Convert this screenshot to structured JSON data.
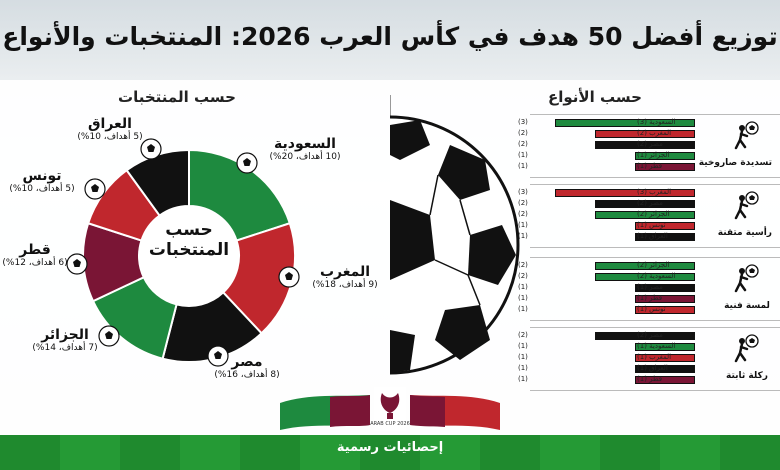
{
  "title": "توزيع أفضل 50 هدف في كأس العرب 2026: المنتخبات والأنواع",
  "footer_label": "إحصائيات رسمية",
  "logo_text": "ARAB CUP 2026",
  "colors": {
    "green": "#1e8a3f",
    "red": "#c0272d",
    "maroon": "#7a1535",
    "black": "#111111"
  },
  "chart_data": [
    {
      "type": "pie",
      "title": "حسب المنتخبات",
      "center_label_line1": "حسب",
      "center_label_line2": "المنتخبات",
      "slices": [
        {
          "name": "السعودية",
          "goals": 10,
          "percent": 20,
          "sub": "(10 أهداف، 20%)",
          "color": "#1e8a3f"
        },
        {
          "name": "المغرب",
          "goals": 9,
          "percent": 18,
          "sub": "(9 أهداف، 18%)",
          "color": "#c0272d"
        },
        {
          "name": "مصر",
          "goals": 8,
          "percent": 16,
          "sub": "(8 أهداف، 16%)",
          "color": "#111111"
        },
        {
          "name": "الجزائر",
          "goals": 7,
          "percent": 14,
          "sub": "(7 أهداف، 14%)",
          "color": "#1e8a3f"
        },
        {
          "name": "قطر",
          "goals": 6,
          "percent": 12,
          "sub": "(6 أهداف، 12%)",
          "color": "#7a1535"
        },
        {
          "name": "تونس",
          "goals": 5,
          "percent": 10,
          "sub": "(5 أهداف، 10%)",
          "color": "#c0272d"
        },
        {
          "name": "العراق",
          "goals": 5,
          "percent": 10,
          "sub": "(5 أهداف، 10%)",
          "color": "#111111"
        }
      ]
    },
    {
      "type": "bar",
      "title": "حسب الأنواع",
      "groups": [
        {
          "name": "تسديدة صاروخية",
          "icon": "shoe-kick-icon",
          "bars": [
            {
              "team": "السعودية",
              "value": 3,
              "label": "السعودية (3)",
              "count": "(3)",
              "color": "#1e8a3f"
            },
            {
              "team": "المغرب",
              "value": 2,
              "label": "المغرب (2)",
              "count": "(2)",
              "color": "#c0272d"
            },
            {
              "team": "مصر",
              "value": 2,
              "label": "مصر (2)",
              "count": "(2)",
              "color": "#111111"
            },
            {
              "team": "الجزائر",
              "value": 1,
              "label": "الجزائر (1)",
              "count": "(1)",
              "color": "#1e8a3f"
            },
            {
              "team": "قطر",
              "value": 1,
              "label": "قطر (1)",
              "count": "(1)",
              "color": "#7a1535"
            }
          ]
        },
        {
          "name": "رأسية متقنة",
          "icon": "header-player-icon",
          "bars": [
            {
              "team": "المغرب",
              "value": 3,
              "label": "المغرب (3)",
              "count": "(3)",
              "color": "#c0272d"
            },
            {
              "team": "مصر",
              "value": 2,
              "label": "مصر (2)",
              "count": "(2)",
              "color": "#111111"
            },
            {
              "team": "الجزائر",
              "value": 2,
              "label": "الجزائر (2)",
              "count": "(2)",
              "color": "#1e8a3f"
            },
            {
              "team": "تونس",
              "value": 1,
              "label": "تونس (1)",
              "count": "(1)",
              "color": "#c0272d"
            },
            {
              "team": "العراق",
              "value": 1,
              "label": "العراق (1)",
              "count": "(1)",
              "color": "#111111"
            }
          ]
        },
        {
          "name": "لمسة فنية",
          "icon": "dribble-player-icon",
          "bars": [
            {
              "team": "الجزائر",
              "value": 2,
              "label": "الجزائر (2)",
              "count": "(2)",
              "color": "#1e8a3f"
            },
            {
              "team": "السعودية",
              "value": 2,
              "label": "السعودية (2)",
              "count": "(2)",
              "color": "#1e8a3f"
            },
            {
              "team": "مصر",
              "value": 1,
              "label": "مصر (1)",
              "count": "(1)",
              "color": "#111111"
            },
            {
              "team": "قطر",
              "value": 1,
              "label": "قطر (1)",
              "count": "(1)",
              "color": "#7a1535"
            },
            {
              "team": "تونس",
              "value": 1,
              "label": "تونس (1)",
              "count": "(1)",
              "color": "#c0272d"
            }
          ]
        },
        {
          "name": "ركلة ثابتة",
          "icon": "ball-kick-icon",
          "bars": [
            {
              "team": "مصر",
              "value": 2,
              "label": "مصر (2)",
              "count": "(2)",
              "color": "#111111"
            },
            {
              "team": "السعودية",
              "value": 1,
              "label": "السعودية (1)",
              "count": "(1)",
              "color": "#1e8a3f"
            },
            {
              "team": "المغرب",
              "value": 1,
              "label": "المغرب (1)",
              "count": "(1)",
              "color": "#c0272d"
            },
            {
              "team": "العراق",
              "value": 1,
              "label": "العراق (1)",
              "count": "(1)",
              "color": "#111111"
            },
            {
              "team": "قطر",
              "value": 1,
              "label": "قطر (1)",
              "count": "(1)",
              "color": "#7a1535"
            }
          ]
        }
      ]
    }
  ]
}
